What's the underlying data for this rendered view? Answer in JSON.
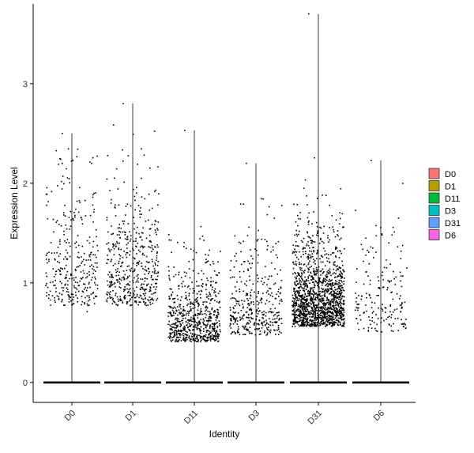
{
  "chart_data": {
    "type": "scatter",
    "subtype": "jitter-strip-violin",
    "title": "",
    "xlabel": "Identity",
    "ylabel": "Expression Level",
    "ylim": [
      -0.2,
      3.8
    ],
    "yticks": [
      0,
      1,
      2,
      3
    ],
    "categories": [
      "D0",
      "D1",
      "D11",
      "D3",
      "D31",
      "D6"
    ],
    "x_tick_rotation_deg": -45,
    "grid": false,
    "legend": {
      "position": "right",
      "entries": [
        {
          "label": "D0",
          "color": "#F8766D"
        },
        {
          "label": "D1",
          "color": "#B79F00"
        },
        {
          "label": "D11",
          "color": "#00BA38"
        },
        {
          "label": "D3",
          "color": "#00BFC4"
        },
        {
          "label": "D31",
          "color": "#619CFF"
        },
        {
          "label": "D6",
          "color": "#F564E3"
        }
      ]
    },
    "point_color": "#000000",
    "series": [
      {
        "name": "D0",
        "max": 2.5,
        "n_nonzero": 320,
        "mean_nonzero": 1.0,
        "spread": 0.65
      },
      {
        "name": "D1",
        "max": 2.8,
        "n_nonzero": 480,
        "mean_nonzero": 1.0,
        "spread": 0.65
      },
      {
        "name": "D11",
        "max": 2.53,
        "n_nonzero": 700,
        "mean_nonzero": 0.55,
        "spread": 0.4
      },
      {
        "name": "D3",
        "max": 2.2,
        "n_nonzero": 380,
        "mean_nonzero": 0.65,
        "spread": 0.5
      },
      {
        "name": "D31",
        "max": 3.7,
        "n_nonzero": 1500,
        "mean_nonzero": 0.72,
        "spread": 0.45
      },
      {
        "name": "D6",
        "max": 2.23,
        "n_nonzero": 180,
        "mean_nonzero": 0.7,
        "spread": 0.55
      }
    ]
  }
}
